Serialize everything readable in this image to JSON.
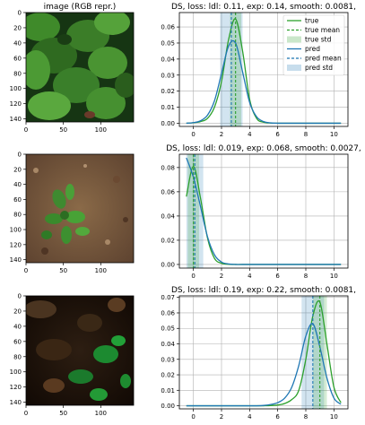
{
  "image_title": "image (RGB repr.)",
  "colors": {
    "true": "#2ca02c",
    "pred": "#1f77b4"
  },
  "image_axis": {
    "xticks": [
      0,
      50,
      100
    ],
    "yticks": [
      0,
      20,
      40,
      60,
      80,
      100,
      120,
      140
    ],
    "extent": [
      0,
      144
    ]
  },
  "legend": [
    "true",
    "true mean",
    "true std",
    "pred",
    "pred mean",
    "pred std"
  ],
  "images": [
    {
      "scene": "dense green leaves"
    },
    {
      "scene": "seedling on brown soil"
    },
    {
      "scene": "dark soil with sparse green leaves"
    }
  ],
  "chart_data": [
    {
      "type": "line",
      "title": "DS, loss: ldl: 0.11, exp: 0.14, smooth: 0.0081,",
      "xlim": [
        -1,
        11
      ],
      "ylim": [
        -0.002,
        0.069
      ],
      "xticks": [
        0,
        2,
        4,
        6,
        8,
        10
      ],
      "yticks": [
        0.0,
        0.01,
        0.02,
        0.03,
        0.04,
        0.05,
        0.06
      ],
      "x": [
        -0.5,
        0,
        0.5,
        1,
        1.5,
        2,
        2.5,
        3,
        3.5,
        4,
        4.5,
        5,
        5.5,
        6,
        6.5,
        7,
        7.5,
        8,
        8.5,
        9,
        9.5,
        10,
        10.5
      ],
      "series": [
        {
          "name": "true",
          "values": [
            0.0,
            0.0003,
            0.001,
            0.003,
            0.01,
            0.026,
            0.052,
            0.065,
            0.045,
            0.015,
            0.003,
            0.0006,
            0.0001,
            0.0,
            0.0,
            0.0,
            0.0,
            0.0,
            0.0,
            0.0,
            0.0,
            0.0,
            0.0
          ]
        },
        {
          "name": "pred",
          "values": [
            0.0,
            0.0004,
            0.0015,
            0.005,
            0.014,
            0.031,
            0.048,
            0.05,
            0.032,
            0.013,
            0.004,
            0.001,
            0.0002,
            0.0,
            0.0,
            0.0,
            0.0,
            0.0,
            0.0,
            0.0,
            0.0,
            0.0,
            0.0
          ]
        }
      ],
      "true_mean": 3.0,
      "true_std": 0.4,
      "pred_mean": 2.7,
      "pred_std": 0.8
    },
    {
      "type": "line",
      "title": "DS, loss: ldl: 0.019, exp: 0.068, smooth: 0.0027,",
      "xlim": [
        -1,
        11
      ],
      "ylim": [
        -0.003,
        0.091
      ],
      "xticks": [
        0,
        2,
        4,
        6,
        8,
        10
      ],
      "yticks": [
        0.0,
        0.02,
        0.04,
        0.06,
        0.08
      ],
      "x": [
        -0.5,
        0,
        0.5,
        1,
        1.5,
        2,
        2.5,
        3,
        3.5,
        4,
        4.5,
        5,
        5.5,
        6,
        6.5,
        7,
        7.5,
        8,
        8.5,
        9,
        9.5,
        10,
        10.5
      ],
      "series": [
        {
          "name": "true",
          "values": [
            0.056,
            0.081,
            0.055,
            0.022,
            0.005,
            0.001,
            0.0002,
            0.0,
            0.0,
            0.0,
            0.0,
            0.0,
            0.0,
            0.0,
            0.0,
            0.0,
            0.0,
            0.0,
            0.0,
            0.0,
            0.0,
            0.0,
            0.0
          ]
        },
        {
          "name": "pred",
          "values": [
            0.088,
            0.072,
            0.048,
            0.023,
            0.008,
            0.002,
            0.0004,
            0.0,
            0.0,
            0.0,
            0.0,
            0.0,
            0.0,
            0.0,
            0.0,
            0.0,
            0.0,
            0.0,
            0.0,
            0.0,
            0.0,
            0.0,
            0.0
          ]
        }
      ],
      "true_mean": 0.0,
      "true_std": 0.4,
      "pred_mean": 0.1,
      "pred_std": 0.6
    },
    {
      "type": "line",
      "title": "DS, loss: ldl: 0.19, exp: 0.22, smooth: 0.0081,",
      "xlim": [
        -1,
        11
      ],
      "ylim": [
        -0.002,
        0.071
      ],
      "xticks": [
        0,
        2,
        4,
        6,
        8,
        10
      ],
      "yticks": [
        0.0,
        0.01,
        0.02,
        0.03,
        0.04,
        0.05,
        0.06,
        0.07
      ],
      "x": [
        -0.5,
        0,
        0.5,
        1,
        1.5,
        2,
        2.5,
        3,
        3.5,
        4,
        4.5,
        5,
        5.5,
        6,
        6.5,
        7,
        7.5,
        8,
        8.5,
        9,
        9.5,
        10,
        10.5
      ],
      "series": [
        {
          "name": "true",
          "values": [
            0.0,
            0.0,
            0.0,
            0.0,
            0.0,
            0.0,
            0.0,
            0.0,
            0.0,
            0.0,
            0.0,
            0.0,
            0.0001,
            0.0005,
            0.0015,
            0.004,
            0.01,
            0.03,
            0.058,
            0.067,
            0.04,
            0.012,
            0.002
          ]
        },
        {
          "name": "pred",
          "values": [
            0.0,
            0.0,
            0.0,
            0.0,
            0.0,
            0.0,
            0.0,
            0.0,
            0.0,
            0.0,
            0.0,
            0.0002,
            0.0008,
            0.002,
            0.005,
            0.012,
            0.026,
            0.045,
            0.053,
            0.038,
            0.018,
            0.005,
            0.001
          ]
        }
      ],
      "true_mean": 9.0,
      "true_std": 0.5,
      "pred_mean": 8.5,
      "pred_std": 0.8
    }
  ]
}
